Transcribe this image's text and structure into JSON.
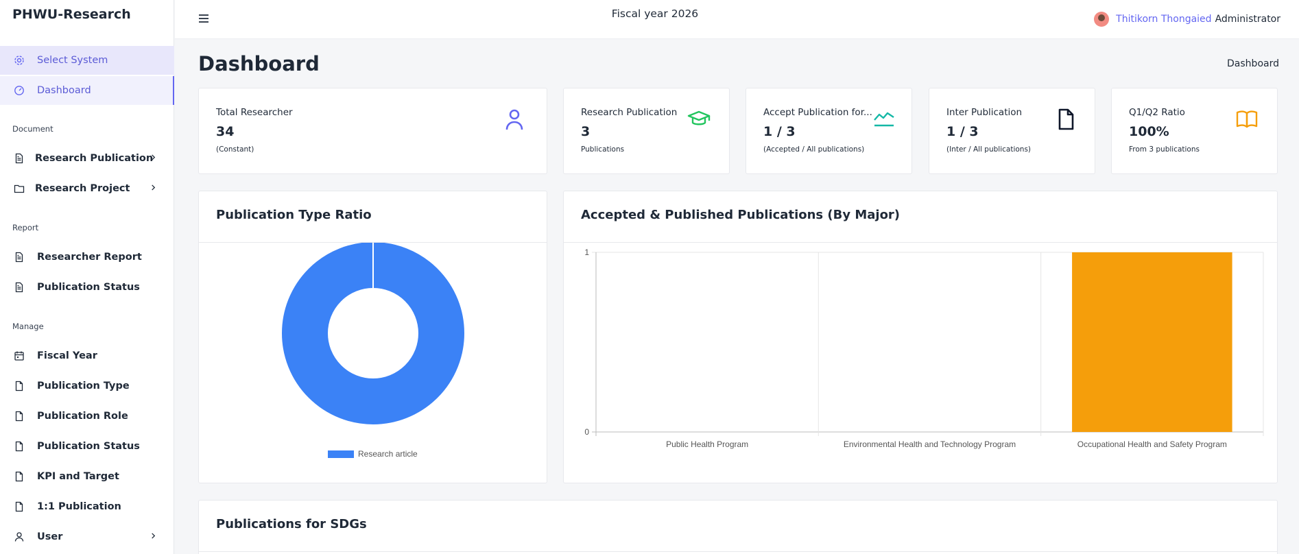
{
  "app": {
    "brand": "PHWU-Research"
  },
  "sidebar": {
    "top_items": [
      {
        "label": "Select System",
        "icon": "gear-icon"
      },
      {
        "label": "Dashboard",
        "icon": "gauge-icon"
      }
    ],
    "sections": [
      {
        "label": "Document",
        "items": [
          {
            "label": "Research Publication",
            "icon": "file-text-icon",
            "has_children": true
          },
          {
            "label": "Research Project",
            "icon": "folder-icon",
            "has_children": true
          }
        ]
      },
      {
        "label": "Report",
        "items": [
          {
            "label": "Researcher Report",
            "icon": "file-text-icon"
          },
          {
            "label": "Publication Status",
            "icon": "file-text-icon"
          }
        ]
      },
      {
        "label": "Manage",
        "items": [
          {
            "label": "Fiscal Year",
            "icon": "calendar-icon"
          },
          {
            "label": "Publication Type",
            "icon": "file-icon"
          },
          {
            "label": "Publication Role",
            "icon": "file-icon"
          },
          {
            "label": "Publication Status",
            "icon": "file-icon"
          },
          {
            "label": "KPI and Target",
            "icon": "file-icon"
          },
          {
            "label": "1:1 Publication",
            "icon": "file-icon"
          },
          {
            "label": "User",
            "icon": "user-icon",
            "has_children": true
          }
        ]
      }
    ]
  },
  "topbar": {
    "fiscal_year": "Fiscal year 2026",
    "user_name": "Thitikorn Thongaied",
    "user_role": "Administrator"
  },
  "page": {
    "title": "Dashboard",
    "breadcrumb": "Dashboard"
  },
  "stats": [
    {
      "title": "Total Researcher",
      "value": "34",
      "sub": "(Constant)",
      "icon": "user-icon",
      "color": "#6366f1"
    },
    {
      "title": "Research Publication",
      "value": "3",
      "sub": "Publications",
      "icon": "graduation-cap-icon",
      "color": "#22c55e"
    },
    {
      "title": "Accept Publication for...",
      "value": "1 / 3",
      "sub": "(Accepted / All publications)",
      "icon": "trend-line-icon",
      "color": "#14b8a6"
    },
    {
      "title": "Inter Publication",
      "value": "1 / 3",
      "sub": "(Inter / All publications)",
      "icon": "document-icon",
      "color": "#0f172a"
    },
    {
      "title": "Q1/Q2 Ratio",
      "value": "100%",
      "sub": "From 3 publications",
      "icon": "book-open-icon",
      "color": "#f59e0b"
    }
  ],
  "panels": {
    "pie_title": "Publication Type Ratio",
    "bar_title": "Accepted & Published Publications (By Major)",
    "sdgs_title": "Publications for SDGs"
  },
  "chart_data": [
    {
      "type": "pie",
      "donut": true,
      "categories": [
        "Research article"
      ],
      "values": [
        3
      ],
      "colors": [
        "#3b82f6"
      ],
      "legend": "bottom"
    },
    {
      "type": "bar",
      "categories": [
        "Public Health Program",
        "Environmental Health and Technology Program",
        "Occupational Health and Safety Program"
      ],
      "values": [
        0,
        0,
        1
      ],
      "colors": [
        "#f59e0b"
      ],
      "ylim": [
        0,
        1
      ],
      "y_ticks": [
        "1",
        "0"
      ],
      "grid": true,
      "legend": "none"
    }
  ]
}
